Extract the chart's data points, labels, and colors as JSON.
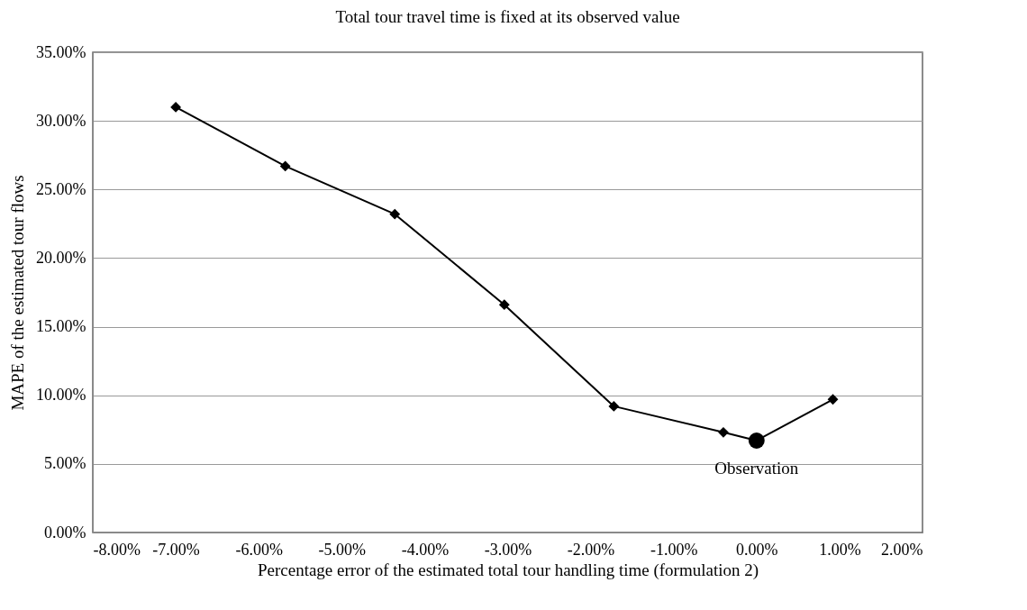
{
  "chart_data": {
    "type": "line",
    "title": "Total tour travel time is fixed at its observed value",
    "xlabel": "Percentage error of the estimated total tour handling time (formulation 2)",
    "ylabel": "MAPE of the estimated tour flows",
    "series": [
      {
        "color": "#000000",
        "marker": "diamond",
        "line_style": "solid",
        "x": [
          -7.0,
          -5.68,
          -4.36,
          -3.04,
          -1.72,
          -0.4,
          0.0,
          0.92
        ],
        "values": [
          31.0,
          26.7,
          23.2,
          16.6,
          9.2,
          7.3,
          6.7,
          9.7
        ]
      },
      {
        "type": "scatter",
        "color": "#000000",
        "marker": "circle",
        "x": [
          0.0
        ],
        "values": [
          6.7
        ]
      }
    ],
    "annotations": [
      {
        "text": "Observation",
        "x": 0.0,
        "y": 6.7
      }
    ],
    "xlim": [
      -8,
      2
    ],
    "xticks": [
      {
        "value": -8,
        "label": "-8.00%"
      },
      {
        "value": -7,
        "label": "-7.00%"
      },
      {
        "value": -6,
        "label": "-6.00%"
      },
      {
        "value": -5,
        "label": "-5.00%"
      },
      {
        "value": -4,
        "label": "-4.00%"
      },
      {
        "value": -3,
        "label": "-3.00%"
      },
      {
        "value": -2,
        "label": "-2.00%"
      },
      {
        "value": -1,
        "label": "-1.00%"
      },
      {
        "value": 0,
        "label": "0.00%"
      },
      {
        "value": 1,
        "label": "1.00%"
      },
      {
        "value": 2,
        "label": "2.00%"
      }
    ],
    "ylim": [
      0,
      35
    ],
    "yticks": [
      {
        "value": 0,
        "label": "0.00%"
      },
      {
        "value": 5,
        "label": "5.00%"
      },
      {
        "value": 10,
        "label": "10.00%"
      },
      {
        "value": 15,
        "label": "15.00%"
      },
      {
        "value": 20,
        "label": "20.00%"
      },
      {
        "value": 25,
        "label": "25.00%"
      },
      {
        "value": 30,
        "label": "30.00%"
      },
      {
        "value": 35,
        "label": "35.00%"
      }
    ],
    "grid": "y"
  }
}
